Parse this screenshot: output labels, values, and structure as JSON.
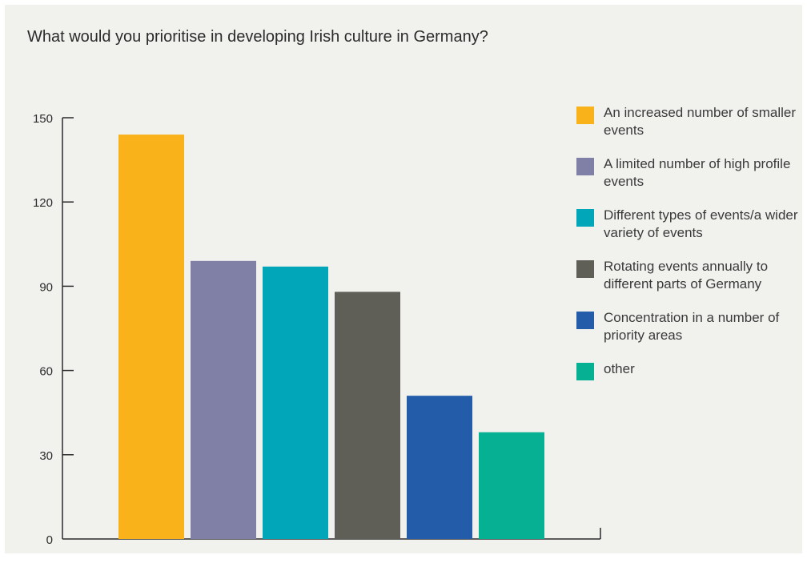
{
  "chart_data": {
    "type": "bar",
    "title": "What would you prioritise in developing Irish culture in Germany?",
    "xlabel": "",
    "ylabel": "",
    "ylim": [
      0,
      150
    ],
    "yticks": [
      0,
      30,
      60,
      90,
      120,
      150
    ],
    "categories": [
      "An increased number of smaller events",
      "A limited number of high profile events",
      "Different types of events/a wider variety of events",
      "Rotating events annually to different parts of Germany",
      "Concentration in a number of priority areas",
      "other"
    ],
    "values": [
      144,
      99,
      97,
      88,
      51,
      38
    ],
    "colors": [
      "#f9b219",
      "#8080a6",
      "#01a7b9",
      "#5f5f58",
      "#235ca8",
      "#06b093"
    ],
    "legend_position": "right",
    "grid": false
  }
}
